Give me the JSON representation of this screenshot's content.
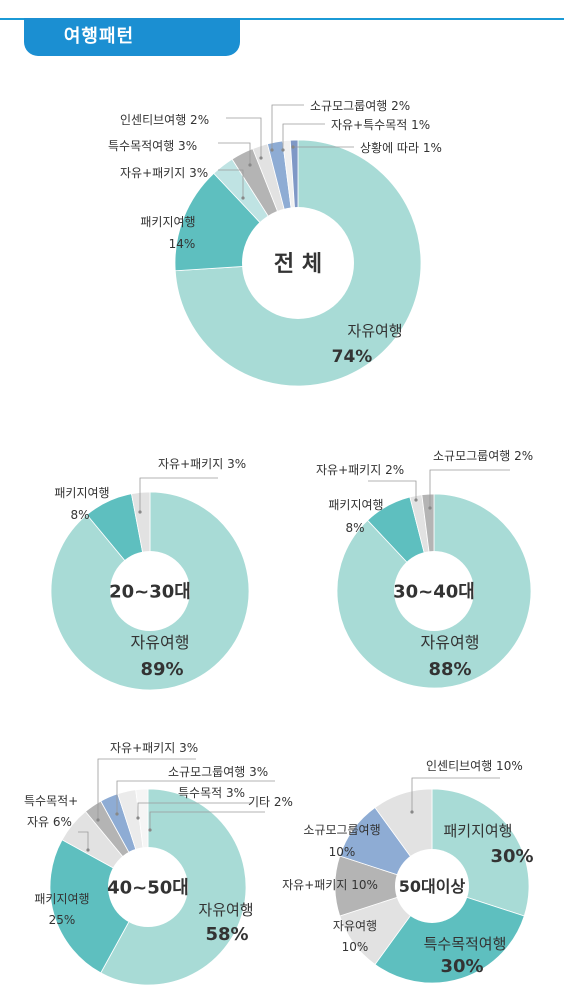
{
  "section": {
    "title": "여행패턴"
  },
  "colors": {
    "header": "#1b8fd2",
    "ring_label": "#1a86c9",
    "highlight": "#c51f3a",
    "text": "#333333"
  },
  "chart_data": [
    {
      "type": "pie",
      "variant": "donut",
      "center_label": "전 체",
      "slices": [
        {
          "label": "자유여행",
          "value": 74,
          "value_label": "74%",
          "color": "#a8dbd6"
        },
        {
          "label": "패키지여행",
          "value": 14,
          "value_label": "14%",
          "color": "#5ebfbf"
        },
        {
          "label": "자유+패키지",
          "value": 3,
          "value_label": "3%",
          "color": "#bfe3e3"
        },
        {
          "label": "특수목적여행",
          "value": 3,
          "value_label": "3%",
          "color": "#b4b4b4"
        },
        {
          "label": "인센티브여행",
          "value": 2,
          "value_label": "2%",
          "color": "#e2e2e2"
        },
        {
          "label": "소규모그룹여행",
          "value": 2,
          "value_label": "2%",
          "color": "#8eacd4"
        },
        {
          "label": "자유+특수목적",
          "value": 1,
          "value_label": "1%",
          "color": "#f0f0f0"
        },
        {
          "label": "상황에 따라",
          "value": 1,
          "value_label": "1%",
          "color": "#7f98c6"
        }
      ]
    },
    {
      "type": "pie",
      "variant": "donut",
      "center_label": "20~30대",
      "slices": [
        {
          "label": "자유여행",
          "value": 89,
          "value_label": "89%",
          "color": "#a8dbd6"
        },
        {
          "label": "패키지여행",
          "value": 8,
          "value_label": "8%",
          "color": "#5ebfbf"
        },
        {
          "label": "자유+패키지",
          "value": 3,
          "value_label": "3%",
          "color": "#e2e2e2"
        }
      ]
    },
    {
      "type": "pie",
      "variant": "donut",
      "center_label": "30~40대",
      "slices": [
        {
          "label": "자유여행",
          "value": 88,
          "value_label": "88%",
          "color": "#a8dbd6"
        },
        {
          "label": "패키지여행",
          "value": 8,
          "value_label": "8%",
          "color": "#5ebfbf"
        },
        {
          "label": "자유+패키지",
          "value": 2,
          "value_label": "2%",
          "color": "#e2e2e2"
        },
        {
          "label": "소규모그룹여행",
          "value": 2,
          "value_label": "2%",
          "color": "#b4b4b4"
        }
      ]
    },
    {
      "type": "pie",
      "variant": "donut",
      "center_label": "40~50대",
      "slices": [
        {
          "label": "자유여행",
          "value": 58,
          "value_label": "58%",
          "color": "#a8dbd6"
        },
        {
          "label": "패키지여행",
          "value": 25,
          "value_label": "25%",
          "color": "#5ebfbf"
        },
        {
          "label": "특수목적+자유",
          "value": 6,
          "value_label": "6%",
          "color": "#e2e2e2"
        },
        {
          "label": "자유+패키지",
          "value": 3,
          "value_label": "3%",
          "color": "#b4b4b4"
        },
        {
          "label": "소규모그룹여행",
          "value": 3,
          "value_label": "3%",
          "color": "#8eacd4"
        },
        {
          "label": "특수목적",
          "value": 3,
          "value_label": "3%",
          "color": "#ebebeb"
        },
        {
          "label": "기타",
          "value": 2,
          "value_label": "2%",
          "color": "#f5f5f5"
        }
      ]
    },
    {
      "type": "pie",
      "variant": "donut",
      "center_label": "50대이상",
      "slices": [
        {
          "label": "패키지여행",
          "value": 30,
          "value_label": "30%",
          "color": "#a8dbd6"
        },
        {
          "label": "특수목적여행",
          "value": 30,
          "value_label": "30%",
          "color": "#5ebfbf"
        },
        {
          "label": "자유여행",
          "value": 10,
          "value_label": "10%",
          "color": "#e2e2e2"
        },
        {
          "label": "자유+패키지",
          "value": 10,
          "value_label": "10%",
          "color": "#b4b4b4"
        },
        {
          "label": "소규모그룹여행",
          "value": 10,
          "value_label": "10%",
          "color": "#8eacd4"
        },
        {
          "label": "인센티브여행",
          "value": 10,
          "value_label": "10%",
          "color": "#e2e2e2"
        }
      ]
    }
  ]
}
